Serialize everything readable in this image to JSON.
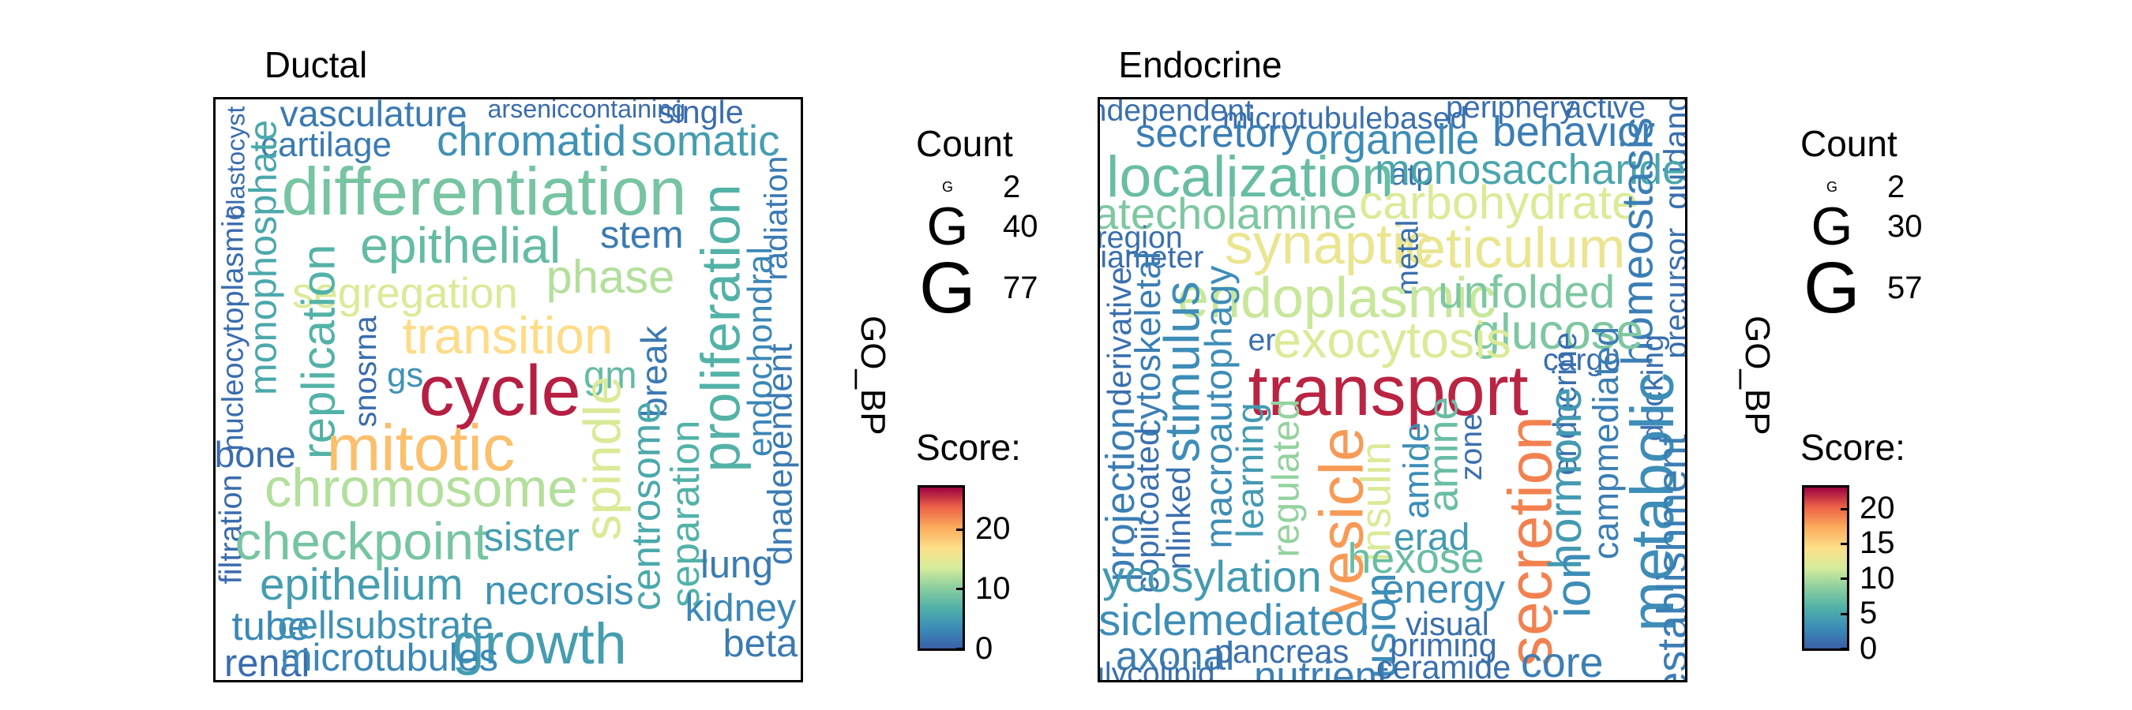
{
  "chart_data": [
    {
      "type": "wordcloud",
      "title": "Ductal",
      "strip_label": "GO_BP",
      "legend": {
        "count_title": "Count",
        "count_values": [
          2,
          40,
          77
        ],
        "score_title": "Score:",
        "score_ticks": [
          0,
          10,
          20
        ],
        "score_range": [
          0,
          27
        ]
      },
      "words": [
        {
          "text": "vasculature",
          "count": 12,
          "score": 2
        },
        {
          "text": "arseniccontaining",
          "count": 3,
          "score": 1
        },
        {
          "text": "single",
          "count": 8,
          "score": 1
        },
        {
          "text": "blastocyst",
          "count": 3,
          "score": 1
        },
        {
          "text": "cartilage",
          "count": 10,
          "score": 2
        },
        {
          "text": "chromatid",
          "count": 20,
          "score": 4
        },
        {
          "text": "somatic",
          "count": 20,
          "score": 5
        },
        {
          "text": "monophosphate",
          "count": 14,
          "score": 6
        },
        {
          "text": "differentiation",
          "count": 68,
          "score": 9
        },
        {
          "text": "radiation",
          "count": 8,
          "score": 2
        },
        {
          "text": "nucleocytoplasmic",
          "count": 6,
          "score": 1
        },
        {
          "text": "stem",
          "count": 14,
          "score": 2
        },
        {
          "text": "epithelial",
          "count": 32,
          "score": 8
        },
        {
          "text": "proliferation",
          "count": 40,
          "score": 7
        },
        {
          "text": "phase",
          "count": 26,
          "score": 12
        },
        {
          "text": "segregation",
          "count": 20,
          "score": 14
        },
        {
          "text": "replication",
          "count": 26,
          "score": 7
        },
        {
          "text": "endochondral",
          "count": 10,
          "score": 3
        },
        {
          "text": "transition",
          "count": 34,
          "score": 17
        },
        {
          "text": "snosrna",
          "count": 7,
          "score": 1
        },
        {
          "text": "cycle",
          "count": 77,
          "score": 26
        },
        {
          "text": "gs",
          "count": 10,
          "score": 4
        },
        {
          "text": "gm",
          "count": 14,
          "score": 8
        },
        {
          "text": "break",
          "count": 12,
          "score": 2
        },
        {
          "text": "dnadependent",
          "count": 10,
          "score": 2
        },
        {
          "text": "mitotic",
          "count": 62,
          "score": 19
        },
        {
          "text": "bone",
          "count": 12,
          "score": 1
        },
        {
          "text": "spindle",
          "count": 34,
          "score": 14
        },
        {
          "text": "centrosome",
          "count": 16,
          "score": 6
        },
        {
          "text": "separation",
          "count": 16,
          "score": 7
        },
        {
          "text": "chromosome",
          "count": 38,
          "score": 12
        },
        {
          "text": "filtration",
          "count": 7,
          "score": 1
        },
        {
          "text": "checkpoint",
          "count": 36,
          "score": 9
        },
        {
          "text": "sister",
          "count": 16,
          "score": 5
        },
        {
          "text": "lung",
          "count": 14,
          "score": 2
        },
        {
          "text": "epithelium",
          "count": 22,
          "score": 5
        },
        {
          "text": "necrosis",
          "count": 16,
          "score": 4
        },
        {
          "text": "kidney",
          "count": 14,
          "score": 3
        },
        {
          "text": "tube",
          "count": 16,
          "score": 3
        },
        {
          "text": "cellsubstrate",
          "count": 14,
          "score": 4
        },
        {
          "text": "growth",
          "count": 46,
          "score": 5
        },
        {
          "text": "beta",
          "count": 14,
          "score": 2
        },
        {
          "text": "renal",
          "count": 14,
          "score": 1
        },
        {
          "text": "microtubules",
          "count": 14,
          "score": 3
        }
      ]
    },
    {
      "type": "wordcloud",
      "title": "Endocrine",
      "strip_label": "GO_BP",
      "legend": {
        "count_title": "Count",
        "count_values": [
          2,
          30,
          57
        ],
        "score_title": "Score:",
        "score_ticks": [
          0,
          5,
          10,
          15,
          20
        ],
        "score_range": [
          0,
          23
        ]
      },
      "words": [
        {
          "text": "iondependent",
          "count": 5,
          "score": 1
        },
        {
          "text": "microtubulebased",
          "count": 5,
          "score": 1
        },
        {
          "text": "periphery",
          "count": 5,
          "score": 1
        },
        {
          "text": "active",
          "count": 5,
          "score": 1
        },
        {
          "text": "secretory",
          "count": 12,
          "score": 2
        },
        {
          "text": "organelle",
          "count": 14,
          "score": 3
        },
        {
          "text": "behavior",
          "count": 14,
          "score": 2
        },
        {
          "text": "guidance",
          "count": 6,
          "score": 1
        },
        {
          "text": "localization",
          "count": 34,
          "score": 7
        },
        {
          "text": "atp",
          "count": 5,
          "score": 1
        },
        {
          "text": "monosaccharide",
          "count": 14,
          "score": 5
        },
        {
          "text": "catecholamine",
          "count": 16,
          "score": 8
        },
        {
          "text": "carbohydrate",
          "count": 20,
          "score": 12
        },
        {
          "text": "homeostasis",
          "count": 16,
          "score": 2
        },
        {
          "text": "region",
          "count": 5,
          "score": 1
        },
        {
          "text": "synaptic",
          "count": 32,
          "score": 13
        },
        {
          "text": "reticulum",
          "count": 32,
          "score": 13
        },
        {
          "text": "diameter",
          "count": 5,
          "score": 1
        },
        {
          "text": "metal",
          "count": 5,
          "score": 1
        },
        {
          "text": "precursor",
          "count": 5,
          "score": 1
        },
        {
          "text": "endoplasmic",
          "count": 32,
          "score": 11
        },
        {
          "text": "unfolded",
          "count": 18,
          "score": 8
        },
        {
          "text": "derivative",
          "count": 6,
          "score": 1
        },
        {
          "text": "cytoskeletal",
          "count": 8,
          "score": 2
        },
        {
          "text": "glucose",
          "count": 22,
          "score": 8
        },
        {
          "text": "er",
          "count": 5,
          "score": 1
        },
        {
          "text": "exocytosis",
          "count": 24,
          "score": 12
        },
        {
          "text": "stimulus",
          "count": 22,
          "score": 3
        },
        {
          "text": "cargo",
          "count": 5,
          "score": 1
        },
        {
          "text": "macroautophagy",
          "count": 10,
          "score": 3
        },
        {
          "text": "endocrine",
          "count": 6,
          "score": 1
        },
        {
          "text": "docking",
          "count": 5,
          "score": 1
        },
        {
          "text": "transport",
          "count": 57,
          "score": 22
        },
        {
          "text": "learning",
          "count": 10,
          "score": 4
        },
        {
          "text": "regulated",
          "count": 10,
          "score": 9
        },
        {
          "text": "insulin",
          "count": 14,
          "score": 12
        },
        {
          "text": "amide",
          "count": 8,
          "score": 3
        },
        {
          "text": "amine",
          "count": 14,
          "score": 7
        },
        {
          "text": "zone",
          "count": 5,
          "score": 1
        },
        {
          "text": "campmediated",
          "count": 8,
          "score": 2
        },
        {
          "text": "metabolic",
          "count": 38,
          "score": 3
        },
        {
          "text": "projection",
          "count": 12,
          "score": 2
        },
        {
          "text": "copiicoated",
          "count": 6,
          "score": 1
        },
        {
          "text": "nlinked",
          "count": 6,
          "score": 1
        },
        {
          "text": "vesicle",
          "count": 40,
          "score": 18
        },
        {
          "text": "secretion",
          "count": 40,
          "score": 19
        },
        {
          "text": "hormone",
          "count": 18,
          "score": 4
        },
        {
          "text": "establishment",
          "count": 14,
          "score": 2
        },
        {
          "text": "glycosylation",
          "count": 16,
          "score": 4
        },
        {
          "text": "hexose",
          "count": 14,
          "score": 7
        },
        {
          "text": "erad",
          "count": 10,
          "score": 4
        },
        {
          "text": "energy",
          "count": 12,
          "score": 3
        },
        {
          "text": "fusion",
          "count": 16,
          "score": 3
        },
        {
          "text": "ion",
          "count": 22,
          "score": 3
        },
        {
          "text": "vesiclemediated",
          "count": 16,
          "score": 3
        },
        {
          "text": "visual",
          "count": 6,
          "score": 1
        },
        {
          "text": "axonal",
          "count": 12,
          "score": 2
        },
        {
          "text": "pancreas",
          "count": 6,
          "score": 1
        },
        {
          "text": "priming",
          "count": 6,
          "score": 1
        },
        {
          "text": "core",
          "count": 14,
          "score": 2
        },
        {
          "text": "glycolipid",
          "count": 5,
          "score": 1
        },
        {
          "text": "nutrient",
          "count": 12,
          "score": 2
        },
        {
          "text": "ceramide",
          "count": 6,
          "score": 1
        }
      ]
    }
  ]
}
